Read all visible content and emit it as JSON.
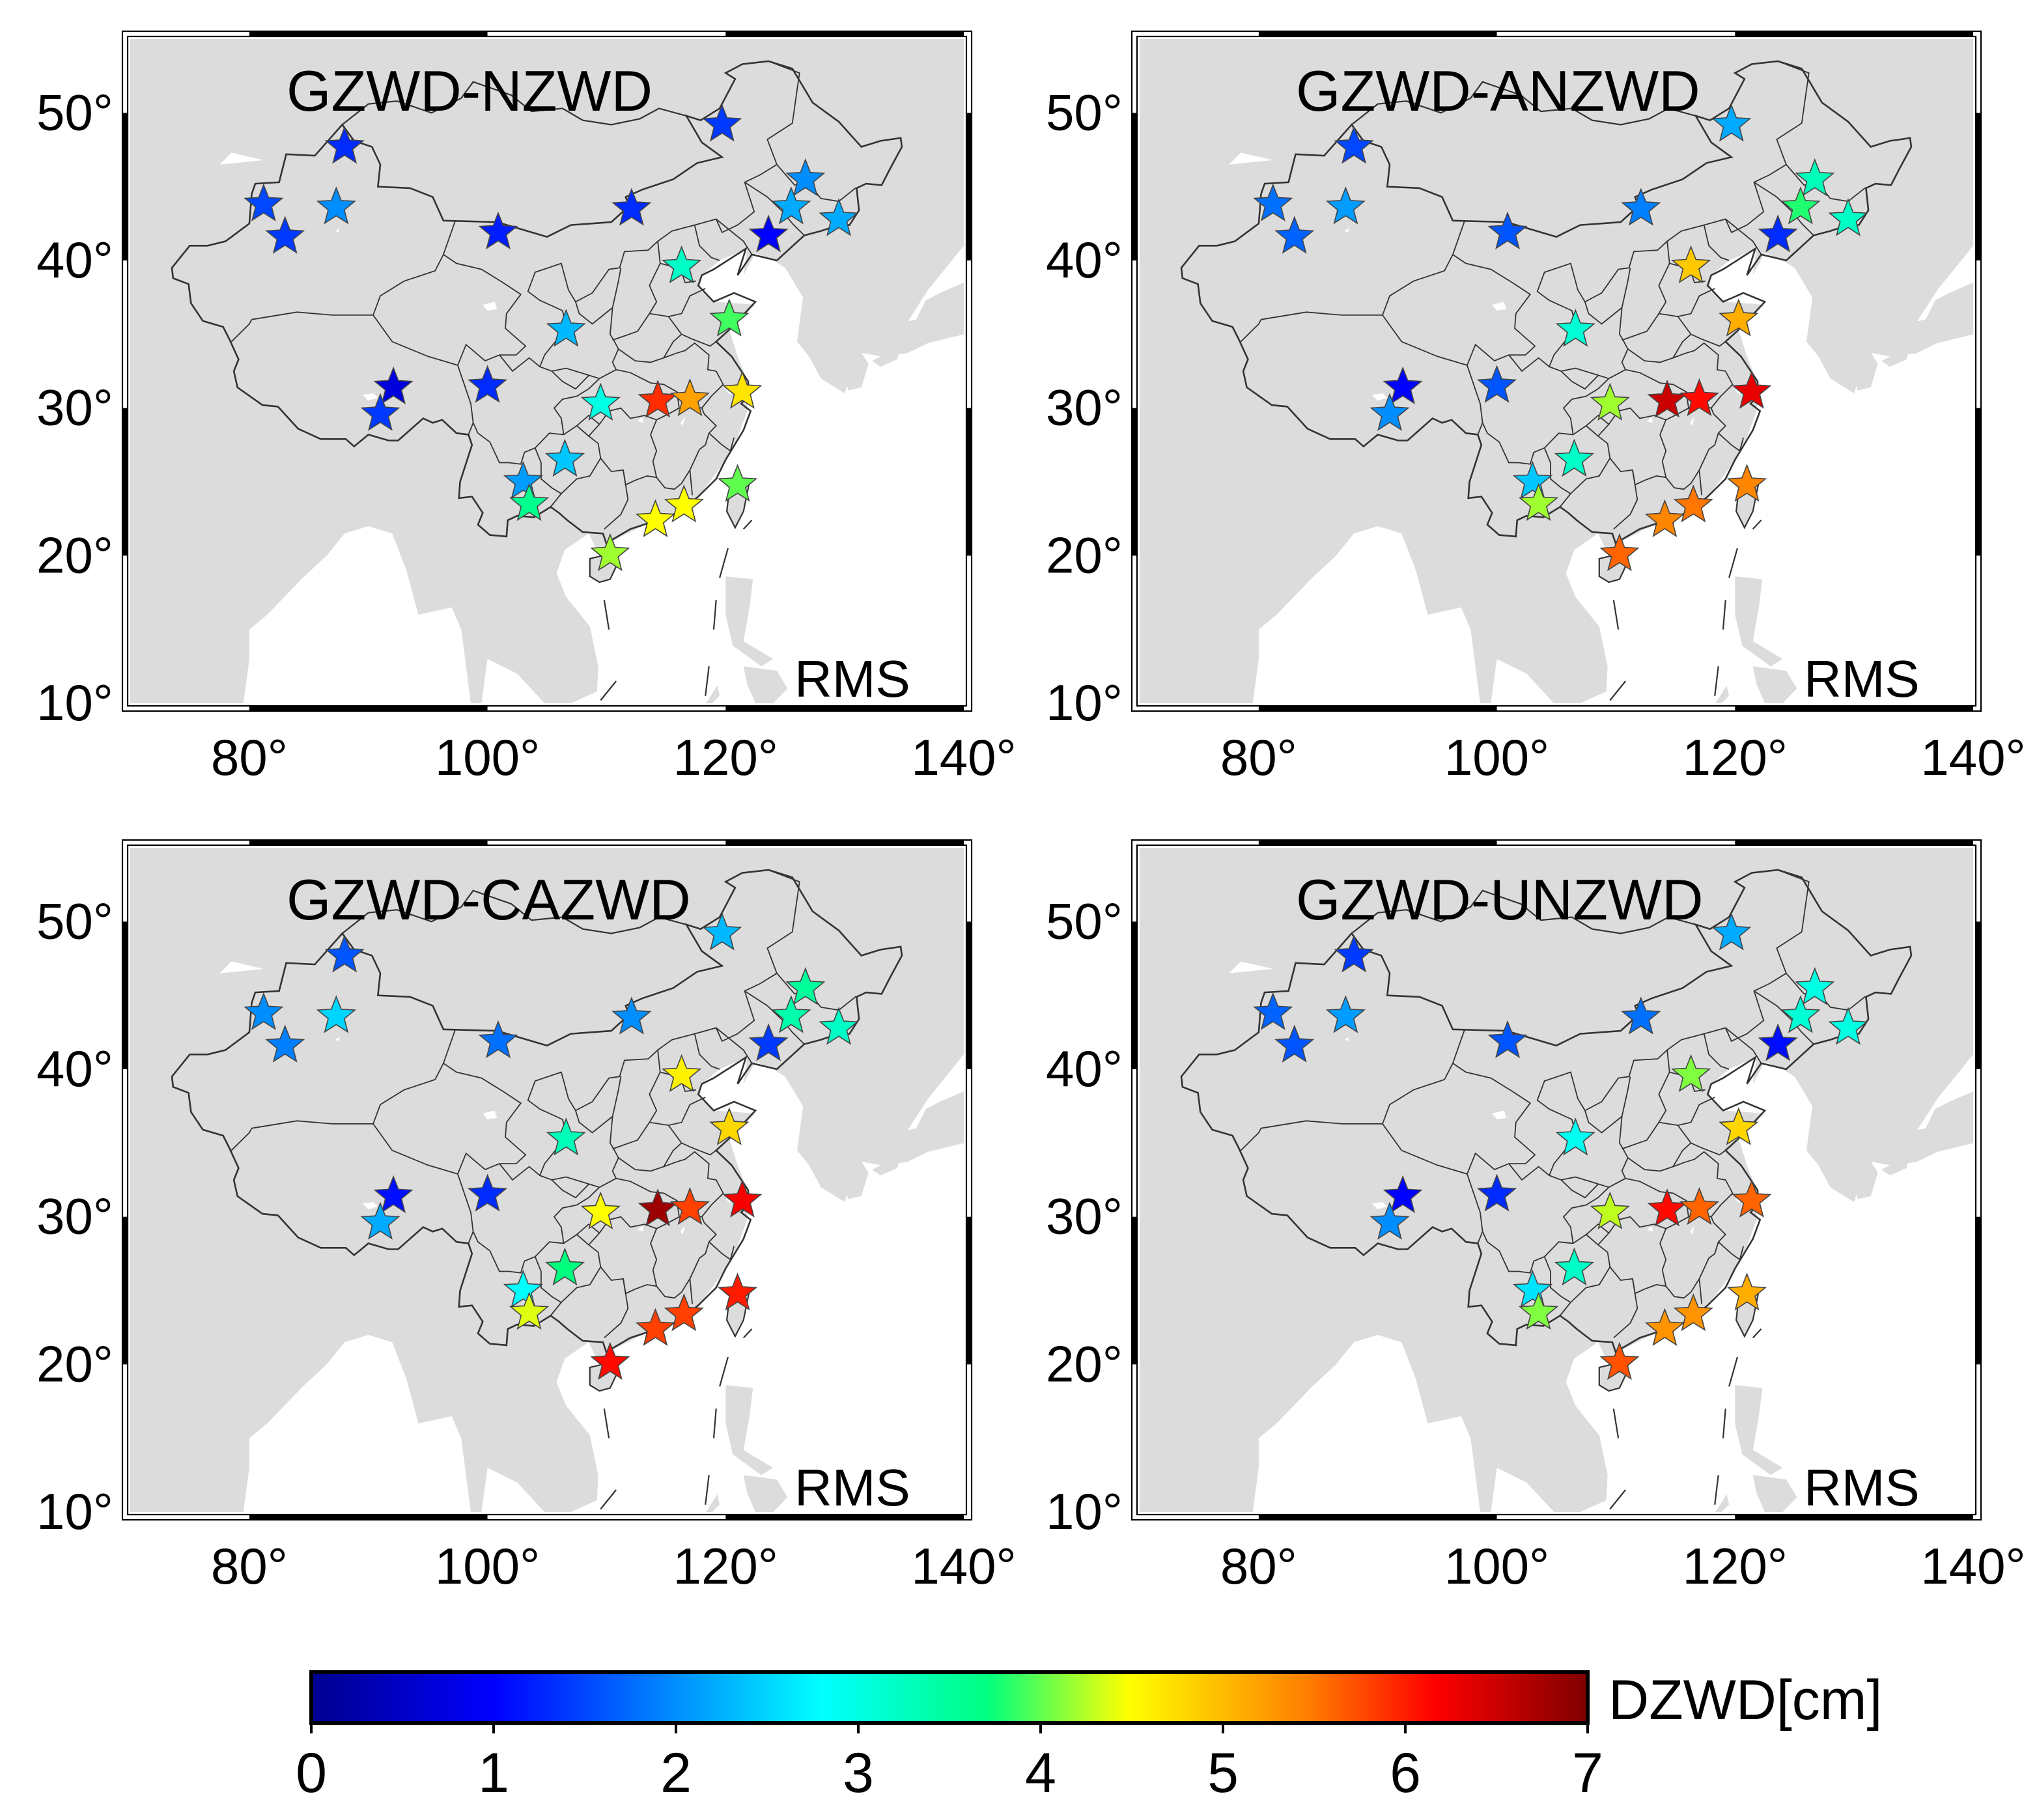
{
  "panels": [
    {
      "title": "GZWD-NZWD",
      "label": "RMS",
      "stations": [
        {
          "lon": 88.0,
          "lat": 47.7,
          "rms": 1.3
        },
        {
          "lon": 81.2,
          "lat": 43.8,
          "rms": 1.5
        },
        {
          "lon": 83.0,
          "lat": 41.6,
          "rms": 1.4
        },
        {
          "lon": 87.3,
          "lat": 43.6,
          "rms": 2.0
        },
        {
          "lon": 100.9,
          "lat": 41.9,
          "rms": 1.2
        },
        {
          "lon": 112.1,
          "lat": 43.5,
          "rms": 1.3
        },
        {
          "lon": 119.7,
          "lat": 49.2,
          "rms": 1.4
        },
        {
          "lon": 126.7,
          "lat": 45.5,
          "rms": 2.0
        },
        {
          "lon": 125.5,
          "lat": 43.6,
          "rms": 2.2
        },
        {
          "lon": 129.5,
          "lat": 42.8,
          "rms": 2.2
        },
        {
          "lon": 123.6,
          "lat": 41.7,
          "rms": 1.0
        },
        {
          "lon": 116.3,
          "lat": 39.6,
          "rms": 3.2
        },
        {
          "lon": 120.3,
          "lat": 36.0,
          "rms": 3.9
        },
        {
          "lon": 106.6,
          "lat": 35.3,
          "rms": 2.3
        },
        {
          "lon": 92.1,
          "lat": 31.4,
          "rms": 0.7
        },
        {
          "lon": 91.0,
          "lat": 29.6,
          "rms": 1.4
        },
        {
          "lon": 100.0,
          "lat": 31.5,
          "rms": 1.3
        },
        {
          "lon": 109.5,
          "lat": 30.3,
          "rms": 3.0
        },
        {
          "lon": 114.3,
          "lat": 30.5,
          "rms": 5.9
        },
        {
          "lon": 117.0,
          "lat": 30.6,
          "rms": 5.2
        },
        {
          "lon": 121.4,
          "lat": 31.1,
          "rms": 4.7
        },
        {
          "lon": 103.0,
          "lat": 25.0,
          "rms": 2.1
        },
        {
          "lon": 106.5,
          "lat": 26.5,
          "rms": 2.4
        },
        {
          "lon": 103.5,
          "lat": 23.5,
          "rms": 3.6
        },
        {
          "lon": 121.0,
          "lat": 24.8,
          "rms": 4.0
        },
        {
          "lon": 116.5,
          "lat": 23.4,
          "rms": 4.5
        },
        {
          "lon": 114.1,
          "lat": 22.4,
          "rms": 4.5
        },
        {
          "lon": 110.3,
          "lat": 20.1,
          "rms": 4.2
        }
      ]
    },
    {
      "title": "GZWD-ANZWD",
      "label": "RMS",
      "stations": [
        {
          "lon": 88.0,
          "lat": 47.7,
          "rms": 1.5
        },
        {
          "lon": 81.2,
          "lat": 43.8,
          "rms": 1.8
        },
        {
          "lon": 83.0,
          "lat": 41.6,
          "rms": 1.7
        },
        {
          "lon": 87.3,
          "lat": 43.6,
          "rms": 2.1
        },
        {
          "lon": 100.9,
          "lat": 41.9,
          "rms": 1.6
        },
        {
          "lon": 112.1,
          "lat": 43.5,
          "rms": 1.9
        },
        {
          "lon": 119.7,
          "lat": 49.2,
          "rms": 2.2
        },
        {
          "lon": 126.7,
          "lat": 45.5,
          "rms": 3.3
        },
        {
          "lon": 125.5,
          "lat": 43.6,
          "rms": 3.8
        },
        {
          "lon": 129.5,
          "lat": 42.8,
          "rms": 3.2
        },
        {
          "lon": 123.6,
          "lat": 41.7,
          "rms": 1.3
        },
        {
          "lon": 116.3,
          "lat": 39.6,
          "rms": 4.9
        },
        {
          "lon": 120.3,
          "lat": 36.0,
          "rms": 5.1
        },
        {
          "lon": 106.6,
          "lat": 35.3,
          "rms": 3.1
        },
        {
          "lon": 92.1,
          "lat": 31.4,
          "rms": 1.0
        },
        {
          "lon": 91.0,
          "lat": 29.6,
          "rms": 2.0
        },
        {
          "lon": 100.0,
          "lat": 31.5,
          "rms": 1.6
        },
        {
          "lon": 109.5,
          "lat": 30.3,
          "rms": 4.2
        },
        {
          "lon": 114.3,
          "lat": 30.5,
          "rms": 6.5
        },
        {
          "lon": 117.0,
          "lat": 30.6,
          "rms": 6.1
        },
        {
          "lon": 121.4,
          "lat": 31.1,
          "rms": 6.3
        },
        {
          "lon": 103.0,
          "lat": 25.0,
          "rms": 2.4
        },
        {
          "lon": 106.5,
          "lat": 26.5,
          "rms": 3.2
        },
        {
          "lon": 103.5,
          "lat": 23.5,
          "rms": 4.2
        },
        {
          "lon": 121.0,
          "lat": 24.8,
          "rms": 5.4
        },
        {
          "lon": 116.5,
          "lat": 23.4,
          "rms": 5.5
        },
        {
          "lon": 114.1,
          "lat": 22.4,
          "rms": 5.4
        },
        {
          "lon": 110.3,
          "lat": 20.1,
          "rms": 5.6
        }
      ]
    },
    {
      "title": "GZWD-CAZWD",
      "label": "RMS",
      "stations": [
        {
          "lon": 88.0,
          "lat": 47.7,
          "rms": 1.6
        },
        {
          "lon": 81.2,
          "lat": 43.8,
          "rms": 2.0
        },
        {
          "lon": 83.0,
          "lat": 41.6,
          "rms": 1.9
        },
        {
          "lon": 87.3,
          "lat": 43.6,
          "rms": 2.5
        },
        {
          "lon": 100.9,
          "lat": 41.9,
          "rms": 1.8
        },
        {
          "lon": 112.1,
          "lat": 43.5,
          "rms": 2.0
        },
        {
          "lon": 119.7,
          "lat": 49.2,
          "rms": 2.3
        },
        {
          "lon": 126.7,
          "lat": 45.5,
          "rms": 3.5
        },
        {
          "lon": 125.5,
          "lat": 43.6,
          "rms": 3.4
        },
        {
          "lon": 129.5,
          "lat": 42.8,
          "rms": 3.2
        },
        {
          "lon": 123.6,
          "lat": 41.7,
          "rms": 1.4
        },
        {
          "lon": 116.3,
          "lat": 39.6,
          "rms": 4.6
        },
        {
          "lon": 120.3,
          "lat": 36.0,
          "rms": 4.8
        },
        {
          "lon": 106.6,
          "lat": 35.3,
          "rms": 3.3
        },
        {
          "lon": 92.1,
          "lat": 31.4,
          "rms": 1.1
        },
        {
          "lon": 91.0,
          "lat": 29.6,
          "rms": 2.2
        },
        {
          "lon": 100.0,
          "lat": 31.5,
          "rms": 1.3
        },
        {
          "lon": 109.5,
          "lat": 30.3,
          "rms": 4.5
        },
        {
          "lon": 114.3,
          "lat": 30.5,
          "rms": 6.8
        },
        {
          "lon": 117.0,
          "lat": 30.6,
          "rms": 5.8
        },
        {
          "lon": 121.4,
          "lat": 31.1,
          "rms": 6.2
        },
        {
          "lon": 103.0,
          "lat": 25.0,
          "rms": 2.8
        },
        {
          "lon": 106.5,
          "lat": 26.5,
          "rms": 3.7
        },
        {
          "lon": 103.5,
          "lat": 23.5,
          "rms": 4.4
        },
        {
          "lon": 121.0,
          "lat": 24.8,
          "rms": 6.0
        },
        {
          "lon": 116.5,
          "lat": 23.4,
          "rms": 5.8
        },
        {
          "lon": 114.1,
          "lat": 22.4,
          "rms": 5.8
        },
        {
          "lon": 110.3,
          "lat": 20.1,
          "rms": 6.1
        }
      ]
    },
    {
      "title": "GZWD-UNZWD",
      "label": "RMS",
      "stations": [
        {
          "lon": 88.0,
          "lat": 47.7,
          "rms": 1.4
        },
        {
          "lon": 81.2,
          "lat": 43.8,
          "rms": 1.7
        },
        {
          "lon": 83.0,
          "lat": 41.6,
          "rms": 1.6
        },
        {
          "lon": 87.3,
          "lat": 43.6,
          "rms": 2.1
        },
        {
          "lon": 100.9,
          "lat": 41.9,
          "rms": 1.6
        },
        {
          "lon": 112.1,
          "lat": 43.5,
          "rms": 1.8
        },
        {
          "lon": 119.7,
          "lat": 49.2,
          "rms": 2.2
        },
        {
          "lon": 126.7,
          "lat": 45.5,
          "rms": 3.0
        },
        {
          "lon": 125.5,
          "lat": 43.6,
          "rms": 3.1
        },
        {
          "lon": 129.5,
          "lat": 42.8,
          "rms": 3.0
        },
        {
          "lon": 123.6,
          "lat": 41.7,
          "rms": 1.1
        },
        {
          "lon": 116.3,
          "lat": 39.6,
          "rms": 4.1
        },
        {
          "lon": 120.3,
          "lat": 36.0,
          "rms": 4.8
        },
        {
          "lon": 106.6,
          "lat": 35.3,
          "rms": 2.9
        },
        {
          "lon": 92.1,
          "lat": 31.4,
          "rms": 1.0
        },
        {
          "lon": 91.0,
          "lat": 29.6,
          "rms": 2.0
        },
        {
          "lon": 100.0,
          "lat": 31.5,
          "rms": 1.3
        },
        {
          "lon": 109.5,
          "lat": 30.3,
          "rms": 4.3
        },
        {
          "lon": 114.3,
          "lat": 30.5,
          "rms": 6.1
        },
        {
          "lon": 117.0,
          "lat": 30.6,
          "rms": 5.6
        },
        {
          "lon": 121.4,
          "lat": 31.1,
          "rms": 5.6
        },
        {
          "lon": 103.0,
          "lat": 25.0,
          "rms": 2.6
        },
        {
          "lon": 106.5,
          "lat": 26.5,
          "rms": 3.2
        },
        {
          "lon": 103.5,
          "lat": 23.5,
          "rms": 4.1
        },
        {
          "lon": 121.0,
          "lat": 24.8,
          "rms": 5.1
        },
        {
          "lon": 116.5,
          "lat": 23.4,
          "rms": 5.3
        },
        {
          "lon": 114.1,
          "lat": 22.4,
          "rms": 5.3
        },
        {
          "lon": 110.3,
          "lat": 20.1,
          "rms": 5.7
        }
      ]
    }
  ],
  "axes": {
    "lon_range": [
      70,
      140
    ],
    "lat_range": [
      10,
      55
    ],
    "lon_ticks": [
      "80°",
      "100°",
      "120°",
      "140°"
    ],
    "lat_ticks": [
      "10°",
      "20°",
      "30°",
      "40°",
      "50°"
    ]
  },
  "colorbar": {
    "label": "DZWD[cm]",
    "min": 0,
    "max": 7,
    "ticks": [
      "0",
      "1",
      "2",
      "3",
      "4",
      "5",
      "6",
      "7"
    ],
    "stops": [
      "#00008f",
      "#0000ff",
      "#00ffff",
      "#00ff7f",
      "#ffff00",
      "#ff7f00",
      "#ff0000",
      "#7f0000"
    ]
  },
  "colors": {
    "land": "#dcdcdc",
    "sea": "#ffffff",
    "boundary": "#333333"
  }
}
